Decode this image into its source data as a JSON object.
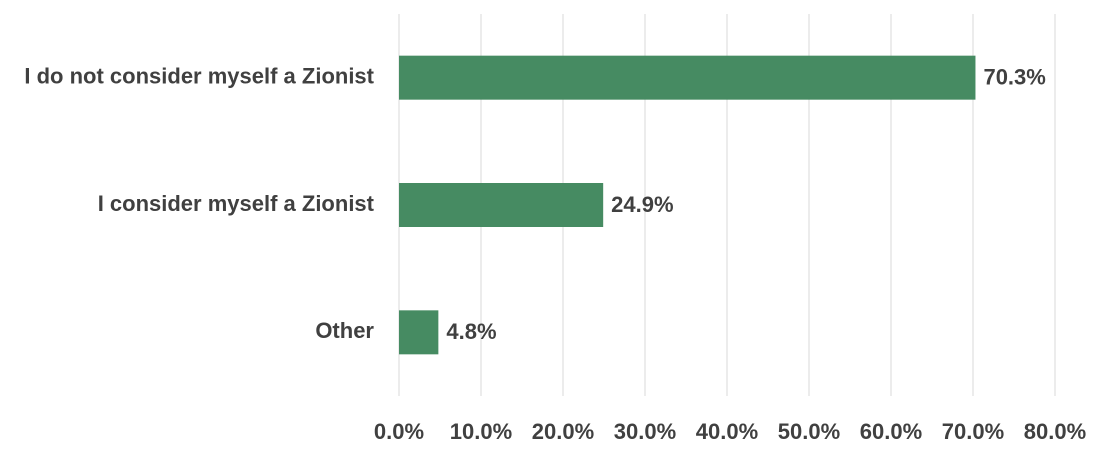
{
  "chart_data": {
    "type": "bar",
    "orientation": "horizontal",
    "categories": [
      "I do not consider myself a Zionist",
      "I consider myself a Zionist",
      "Other"
    ],
    "values": [
      70.3,
      24.9,
      4.8
    ],
    "value_labels": [
      "70.3%",
      "24.9%",
      "4.8%"
    ],
    "color": "#468b62",
    "xlim": [
      0,
      80
    ],
    "xticks": [
      {
        "value": 0,
        "label": "0.0%"
      },
      {
        "value": 10,
        "label": "10.0%"
      },
      {
        "value": 20,
        "label": "20.0%"
      },
      {
        "value": 30,
        "label": "30.0%"
      },
      {
        "value": 40,
        "label": "40.0%"
      },
      {
        "value": 50,
        "label": "50.0%"
      },
      {
        "value": 60,
        "label": "60.0%"
      },
      {
        "value": 70,
        "label": "70.0%"
      },
      {
        "value": 80,
        "label": "80.0%"
      }
    ],
    "grid": true
  }
}
